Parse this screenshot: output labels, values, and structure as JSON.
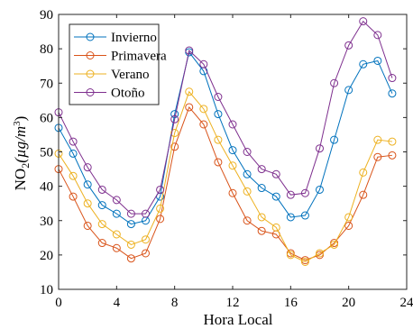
{
  "chart_data": {
    "type": "line",
    "title": "",
    "xlabel": "Hora Local",
    "ylabel": "NO",
    "ylabel_sub": "2",
    "ylabel_unit": "(µg/m",
    "ylabel_unit_sup": "3",
    "ylabel_unit_close": ")",
    "xlim": [
      0,
      24
    ],
    "ylim": [
      10,
      90
    ],
    "xticks": [
      0,
      4,
      8,
      12,
      16,
      20,
      24
    ],
    "xtick_labels": [
      "0",
      "4",
      "8",
      "12",
      "16",
      "20",
      "24"
    ],
    "yticks": [
      10,
      20,
      30,
      40,
      50,
      60,
      70,
      80,
      90
    ],
    "ytick_labels": [
      "10",
      "20",
      "30",
      "40",
      "50",
      "60",
      "70",
      "80",
      "90"
    ],
    "grid": false,
    "legend_position": "top-left",
    "x": [
      0,
      1,
      2,
      3,
      4,
      5,
      6,
      7,
      8,
      9,
      10,
      11,
      12,
      13,
      14,
      15,
      16,
      17,
      18,
      19,
      20,
      21,
      22,
      23
    ],
    "series": [
      {
        "name": "Invierno",
        "color": "#0072BD",
        "values": [
          57,
          49.5,
          40.5,
          34.5,
          32,
          29,
          30,
          37,
          61,
          79,
          73.5,
          61,
          50.5,
          43.5,
          39.5,
          37,
          31,
          31.5,
          39,
          53.5,
          68,
          75.5,
          76.5,
          67
        ]
      },
      {
        "name": "Primavera",
        "color": "#D95319",
        "values": [
          45,
          37,
          28.5,
          23.5,
          22,
          19,
          20.5,
          30.5,
          51.5,
          63,
          58,
          47,
          38,
          30,
          27,
          26,
          20.5,
          18.5,
          20,
          23.5,
          28.5,
          37.5,
          48.5,
          49
        ]
      },
      {
        "name": "Verano",
        "color": "#EDB120",
        "values": [
          49.5,
          43,
          35,
          29,
          26,
          23,
          24.5,
          33.5,
          55.5,
          67.5,
          62.5,
          53.5,
          46,
          38.5,
          31,
          28,
          20,
          18,
          20.5,
          23,
          31,
          44,
          53.5,
          53
        ]
      },
      {
        "name": "Otoño",
        "color": "#7E2F8E",
        "values": [
          61.5,
          53,
          45.5,
          39,
          36,
          32,
          32,
          39,
          59.5,
          79.5,
          75.5,
          66,
          58,
          50,
          45,
          43.5,
          37.5,
          38,
          51,
          70,
          81,
          88,
          84,
          71.5
        ]
      }
    ]
  }
}
